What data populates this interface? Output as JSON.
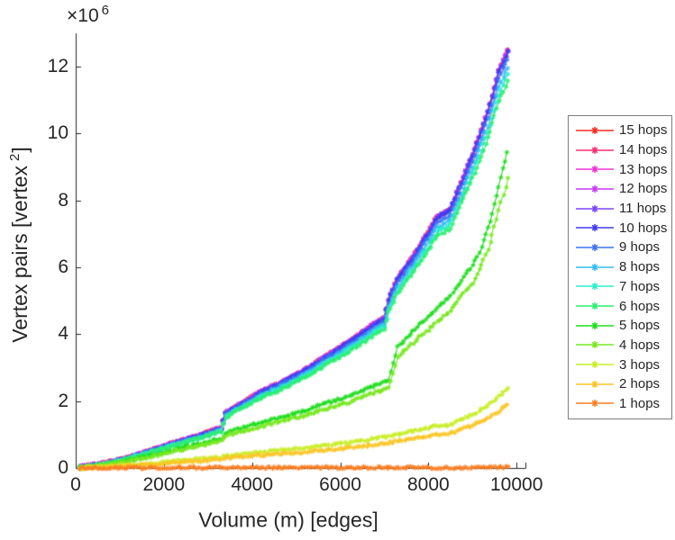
{
  "figure": {
    "background": "#ffffff",
    "axis_color": "#262626",
    "text_color": "#262626",
    "y_multiplier_base": "×10",
    "y_multiplier_exp": "6",
    "ylabel_main": "Vertex pairs [vertex",
    "ylabel_sup": "2",
    "ylabel_end": "]",
    "legend_border_color": "#7d7d7d"
  },
  "chart_data": {
    "type": "line",
    "title": "",
    "xlabel": "Volume (m) [edges]",
    "ylabel": "Vertex pairs [vertex^2]",
    "y_unit_note": "y values stored in units of 1e6 (axis shows ×10^6 multiplier)",
    "marker": "asterisk",
    "grid": false,
    "legend_location": "outside-right",
    "xlim": [
      0,
      10200
    ],
    "ylim_e6": [
      0,
      13
    ],
    "xticks": [
      0,
      2000,
      4000,
      6000,
      8000,
      10000
    ],
    "yticks_e6": [
      0,
      2,
      4,
      6,
      8,
      10,
      12
    ],
    "x_anchors": [
      100,
      400,
      800,
      1200,
      1600,
      2000,
      2400,
      2800,
      3200,
      3300,
      3400,
      3800,
      4200,
      4600,
      5000,
      5400,
      5800,
      6200,
      6600,
      7000,
      7100,
      7300,
      7700,
      8000,
      8200,
      8500,
      8700,
      9000,
      9200,
      9400,
      9600,
      9800
    ],
    "series": [
      {
        "name": "15 hops",
        "color": "#fa2b1e",
        "y_e6": [
          0.05,
          0.1,
          0.19,
          0.33,
          0.49,
          0.67,
          0.83,
          1.0,
          1.17,
          1.19,
          1.65,
          1.95,
          2.28,
          2.49,
          2.83,
          3.13,
          3.48,
          3.83,
          4.13,
          4.48,
          5.03,
          5.63,
          6.33,
          7.03,
          7.58,
          7.83,
          8.43,
          9.43,
          10.23,
          11.03,
          11.93,
          12.43
        ]
      },
      {
        "name": "14 hops",
        "color": "#fb2e74",
        "y_e6": [
          0.047,
          0.097,
          0.187,
          0.327,
          0.487,
          0.667,
          0.827,
          0.997,
          1.167,
          1.187,
          1.647,
          1.947,
          2.277,
          2.487,
          2.827,
          3.127,
          3.477,
          3.827,
          4.127,
          4.477,
          5.027,
          5.627,
          6.327,
          7.027,
          7.577,
          7.827,
          8.427,
          9.427,
          10.227,
          11.027,
          11.927,
          12.427
        ]
      },
      {
        "name": "13 hops",
        "color": "#f233d6",
        "y_e6": [
          0.044,
          0.094,
          0.184,
          0.324,
          0.484,
          0.664,
          0.824,
          0.994,
          1.164,
          1.184,
          1.644,
          1.944,
          2.274,
          2.484,
          2.824,
          3.124,
          3.474,
          3.824,
          4.124,
          4.474,
          5.024,
          5.624,
          6.324,
          7.024,
          7.574,
          7.824,
          8.424,
          9.424,
          10.224,
          11.024,
          11.924,
          12.424
        ]
      },
      {
        "name": "12 hops",
        "color": "#c63cf2",
        "y_e6": [
          0.037,
          0.087,
          0.177,
          0.317,
          0.477,
          0.657,
          0.817,
          0.987,
          1.157,
          1.177,
          1.637,
          1.937,
          2.267,
          2.477,
          2.817,
          3.117,
          3.467,
          3.817,
          4.117,
          4.467,
          5.017,
          5.617,
          6.317,
          7.017,
          7.567,
          7.817,
          8.417,
          9.417,
          10.217,
          11.017,
          11.917,
          12.417
        ]
      },
      {
        "name": "11 hops",
        "color": "#7a45f5",
        "y_e6": [
          0.028,
          0.078,
          0.168,
          0.308,
          0.468,
          0.648,
          0.808,
          0.978,
          1.148,
          1.168,
          1.628,
          1.928,
          2.258,
          2.468,
          2.808,
          3.108,
          3.458,
          3.808,
          4.108,
          4.458,
          5.008,
          5.608,
          6.308,
          7.008,
          7.558,
          7.808,
          8.408,
          9.408,
          10.208,
          11.008,
          11.908,
          12.408
        ]
      },
      {
        "name": "10 hops",
        "color": "#3f3af2",
        "y_e6": [
          0.02,
          0.07,
          0.16,
          0.3,
          0.46,
          0.64,
          0.8,
          0.97,
          1.14,
          1.16,
          1.62,
          1.92,
          2.25,
          2.46,
          2.8,
          3.1,
          3.45,
          3.8,
          4.1,
          4.45,
          5.0,
          5.6,
          6.3,
          7.0,
          7.55,
          7.8,
          8.4,
          9.4,
          10.2,
          11.0,
          11.9,
          12.4
        ]
      },
      {
        "name": "9 hops",
        "color": "#3c74f4",
        "y_e6": [
          0.02,
          0.069,
          0.157,
          0.294,
          0.451,
          0.627,
          0.784,
          0.951,
          1.117,
          1.137,
          1.588,
          1.882,
          2.205,
          2.411,
          2.744,
          3.038,
          3.381,
          3.724,
          4.018,
          4.361,
          4.9,
          5.488,
          6.174,
          6.86,
          7.399,
          7.644,
          8.232,
          9.212,
          9.996,
          10.78,
          11.662,
          12.152
        ]
      },
      {
        "name": "8 hops",
        "color": "#35bdf0",
        "y_e6": [
          0.019,
          0.067,
          0.154,
          0.288,
          0.442,
          0.614,
          0.768,
          0.931,
          1.094,
          1.114,
          1.555,
          1.843,
          2.16,
          2.362,
          2.688,
          2.976,
          3.312,
          3.648,
          3.936,
          4.272,
          4.8,
          5.376,
          6.048,
          6.72,
          7.248,
          7.488,
          8.064,
          9.024,
          9.792,
          10.56,
          11.424,
          11.904
        ]
      },
      {
        "name": "7 hops",
        "color": "#2aeecb",
        "y_e6": [
          0.019,
          0.066,
          0.151,
          0.283,
          0.434,
          0.604,
          0.754,
          0.915,
          1.075,
          1.094,
          1.528,
          1.811,
          2.122,
          2.32,
          2.64,
          2.923,
          3.253,
          3.583,
          3.866,
          4.196,
          4.715,
          5.281,
          5.941,
          6.601,
          7.12,
          7.355,
          7.921,
          8.864,
          9.619,
          10.373,
          11.222,
          11.693
        ]
      },
      {
        "name": "6 hops",
        "color": "#2cee71",
        "y_e6": [
          0.019,
          0.065,
          0.148,
          0.278,
          0.426,
          0.593,
          0.742,
          0.899,
          1.057,
          1.075,
          1.502,
          1.78,
          2.086,
          2.281,
          2.596,
          2.874,
          3.198,
          3.523,
          3.801,
          4.125,
          4.635,
          5.191,
          5.84,
          6.489,
          6.999,
          7.231,
          7.787,
          8.714,
          9.455,
          10.197,
          11.031,
          11.495
        ]
      },
      {
        "name": "5 hops",
        "color": "#20dd20",
        "y_e6": [
          0.01,
          0.05,
          0.12,
          0.22,
          0.34,
          0.48,
          0.6,
          0.73,
          0.86,
          0.87,
          1.05,
          1.2,
          1.35,
          1.48,
          1.65,
          1.82,
          2.0,
          2.18,
          2.36,
          2.55,
          2.6,
          3.6,
          4.1,
          4.5,
          4.8,
          5.2,
          5.55,
          6.1,
          6.7,
          7.45,
          8.45,
          9.4
        ]
      },
      {
        "name": "4 hops",
        "color": "#79e821",
        "y_e6": [
          0.01,
          0.05,
          0.11,
          0.2,
          0.31,
          0.44,
          0.55,
          0.67,
          0.79,
          0.8,
          0.96,
          1.1,
          1.24,
          1.35,
          1.51,
          1.66,
          1.83,
          1.99,
          2.16,
          2.33,
          2.38,
          3.29,
          3.75,
          4.12,
          4.39,
          4.76,
          5.08,
          5.58,
          6.13,
          6.82,
          7.73,
          8.6
        ]
      },
      {
        "name": "3 hops",
        "color": "#c9ee2a",
        "y_e6": [
          0.005,
          0.02,
          0.05,
          0.09,
          0.13,
          0.18,
          0.22,
          0.27,
          0.31,
          0.32,
          0.36,
          0.42,
          0.47,
          0.53,
          0.58,
          0.64,
          0.7,
          0.77,
          0.83,
          0.92,
          0.94,
          1.0,
          1.1,
          1.2,
          1.26,
          1.3,
          1.42,
          1.6,
          1.77,
          1.95,
          2.15,
          2.38
        ]
      },
      {
        "name": "2 hops",
        "color": "#fbc626",
        "y_e6": [
          0.004,
          0.016,
          0.04,
          0.07,
          0.1,
          0.14,
          0.18,
          0.21,
          0.25,
          0.25,
          0.29,
          0.33,
          0.38,
          0.42,
          0.46,
          0.51,
          0.56,
          0.61,
          0.66,
          0.73,
          0.75,
          0.8,
          0.88,
          0.96,
          1.01,
          1.04,
          1.13,
          1.28,
          1.41,
          1.56,
          1.72,
          1.9
        ]
      },
      {
        "name": "1 hops",
        "color": "#fa7e22",
        "y_e6": [
          0.0,
          0.0,
          0.0,
          0.0,
          0.0,
          0.01,
          0.01,
          0.01,
          0.01,
          0.01,
          0.01,
          0.01,
          0.01,
          0.01,
          0.01,
          0.01,
          0.01,
          0.01,
          0.01,
          0.01,
          0.01,
          0.01,
          0.01,
          0.01,
          0.01,
          0.01,
          0.01,
          0.02,
          0.02,
          0.02,
          0.02,
          0.02
        ]
      }
    ]
  }
}
